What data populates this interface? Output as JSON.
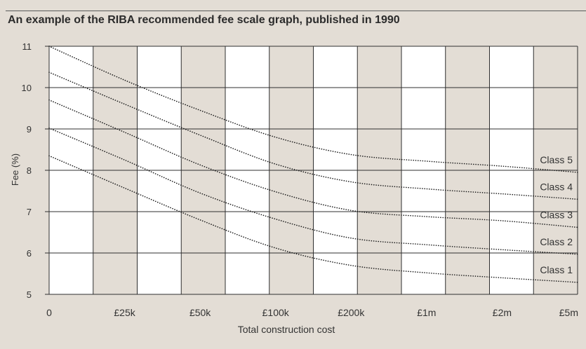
{
  "chart_data": {
    "type": "line",
    "title": "An example of the RIBA recommended fee scale graph, published in 1990",
    "xlabel": "Total construction cost",
    "ylabel": "Fee (%)",
    "x_tick_labels": [
      "0",
      "£25k",
      "£50k",
      "£100k",
      "£200k",
      "£1m",
      "£2m",
      "£5m"
    ],
    "ylim": [
      5,
      11
    ],
    "y_ticks": [
      5,
      6,
      7,
      8,
      9,
      10,
      11
    ],
    "grid": true,
    "series": [
      {
        "name": "Class 5",
        "values": [
          11.0,
          10.18,
          9.45,
          8.8,
          8.38,
          8.22,
          8.1,
          7.95
        ]
      },
      {
        "name": "Class 4",
        "values": [
          10.37,
          9.6,
          8.85,
          8.15,
          7.72,
          7.55,
          7.43,
          7.3
        ]
      },
      {
        "name": "Class 3",
        "values": [
          9.7,
          8.92,
          8.13,
          7.48,
          7.03,
          6.88,
          6.78,
          6.62
        ]
      },
      {
        "name": "Class 2",
        "values": [
          9.02,
          8.25,
          7.45,
          6.82,
          6.36,
          6.2,
          6.08,
          5.97
        ]
      },
      {
        "name": "Class 1",
        "values": [
          8.35,
          7.57,
          6.8,
          6.12,
          5.7,
          5.52,
          5.4,
          5.29
        ]
      }
    ]
  }
}
